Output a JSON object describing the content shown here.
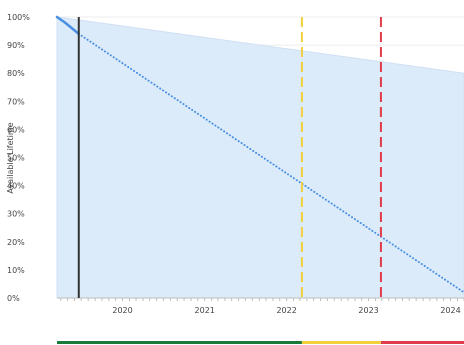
{
  "chart_data": {
    "type": "line",
    "ylabel": "Available Lifetime",
    "xlabel": "",
    "x_range": [
      "2019-03-15",
      "2024-03-01"
    ],
    "ylim": [
      0,
      100
    ],
    "y_ticks": [
      0,
      10,
      20,
      30,
      40,
      50,
      60,
      70,
      80,
      90,
      100
    ],
    "y_tick_labels": [
      "0%",
      "10%",
      "20%",
      "30%",
      "40%",
      "50%",
      "60%",
      "70%",
      "80%",
      "90%",
      "100%"
    ],
    "x_ticks": [
      "2020-01-01",
      "2021-01-01",
      "2022-01-01",
      "2023-01-01",
      "2024-01-01"
    ],
    "x_tick_labels": [
      "2020",
      "2021",
      "2022",
      "2023",
      "2024"
    ],
    "grid": true,
    "series": [
      {
        "style": "solid",
        "color": "#4a90e2",
        "points": [
          {
            "x": "2019-03-15",
            "y": 100
          },
          {
            "x": "2019-04-20",
            "y": 98
          },
          {
            "x": "2019-06-20",
            "y": 94
          }
        ]
      },
      {
        "style": "dotted",
        "color": "#4a90e2",
        "points": [
          {
            "x": "2019-06-20",
            "y": 94
          },
          {
            "x": "2024-03-01",
            "y": 2
          }
        ]
      }
    ],
    "shaded_area": {
      "color": "#dcebfa",
      "upper_boundary": [
        {
          "x": "2019-03-15",
          "y": 100
        },
        {
          "x": "2024-03-01",
          "y": 80
        }
      ]
    },
    "markers": [
      {
        "x": "2019-06-20",
        "style": "solid",
        "color": "#333333"
      },
      {
        "x": "2022-03-10",
        "style": "dashed",
        "color": "#f2d03b"
      },
      {
        "x": "2023-02-25",
        "style": "dashed",
        "color": "#e03c4b"
      }
    ],
    "status_bar": [
      {
        "from": "2019-03-15",
        "to": "2022-03-10",
        "color": "#1a7a3a"
      },
      {
        "from": "2022-03-10",
        "to": "2023-02-25",
        "color": "#f2d03b"
      },
      {
        "from": "2023-02-25",
        "to": "2024-03-01",
        "color": "#e03c4b"
      }
    ]
  }
}
